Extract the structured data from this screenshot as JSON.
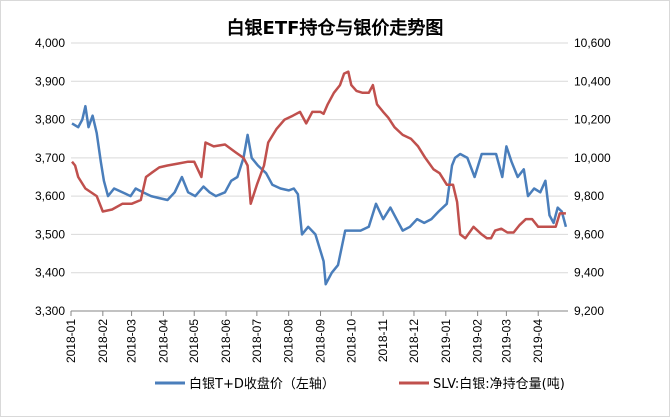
{
  "chart_data": {
    "type": "line",
    "title": "白银ETF持仓与银价走势图",
    "x_tick_labels": [
      "2018-01",
      "2018-02",
      "2018-03",
      "2018-04",
      "2018-05",
      "2018-06",
      "2018-07",
      "2018-08",
      "2018-09",
      "2018-10",
      "2018-11",
      "2018-12",
      "2019-01",
      "2019-02",
      "2019-03",
      "2019-04"
    ],
    "xlim": [
      "2018-01-01",
      "2019-04-30"
    ],
    "y_left": {
      "ylim": [
        3300,
        4000
      ],
      "ticks": [
        "3,300",
        "3,400",
        "3,500",
        "3,600",
        "3,700",
        "3,800",
        "3,900",
        "4,000"
      ]
    },
    "y_right": {
      "ylim": [
        9200,
        10600
      ],
      "ticks": [
        "9,200",
        "9,400",
        "9,600",
        "9,800",
        "10,000",
        "10,200",
        "10,400",
        "10,600"
      ]
    },
    "grid": "horizontal",
    "legend_position": "bottom",
    "series": [
      {
        "name": "白银T+D收盘价（左轴）",
        "axis": "left",
        "color": "#4a7ebb",
        "points": [
          [
            "2018-01-02",
            3790
          ],
          [
            "2018-01-08",
            3780
          ],
          [
            "2018-01-12",
            3800
          ],
          [
            "2018-01-15",
            3835
          ],
          [
            "2018-01-18",
            3780
          ],
          [
            "2018-01-22",
            3810
          ],
          [
            "2018-01-26",
            3765
          ],
          [
            "2018-01-30",
            3690
          ],
          [
            "2018-02-02",
            3640
          ],
          [
            "2018-02-06",
            3600
          ],
          [
            "2018-02-12",
            3620
          ],
          [
            "2018-02-20",
            3610
          ],
          [
            "2018-02-28",
            3600
          ],
          [
            "2018-03-05",
            3620
          ],
          [
            "2018-03-12",
            3610
          ],
          [
            "2018-03-20",
            3600
          ],
          [
            "2018-03-28",
            3595
          ],
          [
            "2018-04-05",
            3590
          ],
          [
            "2018-04-12",
            3610
          ],
          [
            "2018-04-19",
            3650
          ],
          [
            "2018-04-25",
            3610
          ],
          [
            "2018-05-02",
            3600
          ],
          [
            "2018-05-10",
            3625
          ],
          [
            "2018-05-16",
            3610
          ],
          [
            "2018-05-22",
            3600
          ],
          [
            "2018-05-31",
            3610
          ],
          [
            "2018-06-06",
            3640
          ],
          [
            "2018-06-12",
            3650
          ],
          [
            "2018-06-18",
            3700
          ],
          [
            "2018-06-22",
            3760
          ],
          [
            "2018-06-26",
            3700
          ],
          [
            "2018-07-02",
            3680
          ],
          [
            "2018-07-10",
            3660
          ],
          [
            "2018-07-16",
            3630
          ],
          [
            "2018-07-24",
            3620
          ],
          [
            "2018-08-01",
            3615
          ],
          [
            "2018-08-06",
            3620
          ],
          [
            "2018-08-10",
            3605
          ],
          [
            "2018-08-14",
            3500
          ],
          [
            "2018-08-20",
            3520
          ],
          [
            "2018-08-27",
            3500
          ],
          [
            "2018-09-04",
            3430
          ],
          [
            "2018-09-06",
            3370
          ],
          [
            "2018-09-12",
            3400
          ],
          [
            "2018-09-18",
            3420
          ],
          [
            "2018-09-25",
            3510
          ],
          [
            "2018-10-02",
            3510
          ],
          [
            "2018-10-10",
            3510
          ],
          [
            "2018-10-18",
            3520
          ],
          [
            "2018-10-25",
            3580
          ],
          [
            "2018-11-01",
            3540
          ],
          [
            "2018-11-08",
            3570
          ],
          [
            "2018-11-14",
            3540
          ],
          [
            "2018-11-20",
            3510
          ],
          [
            "2018-11-27",
            3520
          ],
          [
            "2018-12-04",
            3540
          ],
          [
            "2018-12-11",
            3530
          ],
          [
            "2018-12-18",
            3540
          ],
          [
            "2018-12-25",
            3560
          ],
          [
            "2019-01-02",
            3580
          ],
          [
            "2019-01-07",
            3680
          ],
          [
            "2019-01-10",
            3700
          ],
          [
            "2019-01-15",
            3710
          ],
          [
            "2019-01-22",
            3700
          ],
          [
            "2019-01-29",
            3650
          ],
          [
            "2019-02-05",
            3710
          ],
          [
            "2019-02-12",
            3710
          ],
          [
            "2019-02-19",
            3710
          ],
          [
            "2019-02-25",
            3650
          ],
          [
            "2019-03-01",
            3730
          ],
          [
            "2019-03-06",
            3690
          ],
          [
            "2019-03-12",
            3650
          ],
          [
            "2019-03-18",
            3670
          ],
          [
            "2019-03-22",
            3600
          ],
          [
            "2019-03-28",
            3620
          ],
          [
            "2019-04-03",
            3610
          ],
          [
            "2019-04-08",
            3640
          ],
          [
            "2019-04-12",
            3550
          ],
          [
            "2019-04-16",
            3530
          ],
          [
            "2019-04-20",
            3570
          ],
          [
            "2019-04-24",
            3560
          ],
          [
            "2019-04-28",
            3520
          ]
        ]
      },
      {
        "name": "SLV:白银:净持仓量(吨)",
        "axis": "right",
        "color": "#c0504d",
        "points": [
          [
            "2018-01-02",
            9980
          ],
          [
            "2018-01-05",
            9960
          ],
          [
            "2018-01-08",
            9900
          ],
          [
            "2018-01-15",
            9840
          ],
          [
            "2018-01-26",
            9800
          ],
          [
            "2018-02-01",
            9720
          ],
          [
            "2018-02-10",
            9730
          ],
          [
            "2018-02-20",
            9760
          ],
          [
            "2018-03-01",
            9760
          ],
          [
            "2018-03-10",
            9780
          ],
          [
            "2018-03-15",
            9900
          ],
          [
            "2018-03-20",
            9920
          ],
          [
            "2018-03-28",
            9950
          ],
          [
            "2018-04-05",
            9960
          ],
          [
            "2018-04-15",
            9970
          ],
          [
            "2018-04-25",
            9980
          ],
          [
            "2018-05-01",
            9980
          ],
          [
            "2018-05-08",
            9900
          ],
          [
            "2018-05-12",
            10080
          ],
          [
            "2018-05-20",
            10060
          ],
          [
            "2018-05-31",
            10070
          ],
          [
            "2018-06-10",
            10030
          ],
          [
            "2018-06-18",
            10000
          ],
          [
            "2018-06-22",
            9960
          ],
          [
            "2018-06-25",
            9760
          ],
          [
            "2018-07-01",
            9860
          ],
          [
            "2018-07-08",
            9960
          ],
          [
            "2018-07-12",
            10080
          ],
          [
            "2018-07-20",
            10150
          ],
          [
            "2018-07-28",
            10200
          ],
          [
            "2018-08-05",
            10220
          ],
          [
            "2018-08-12",
            10240
          ],
          [
            "2018-08-18",
            10180
          ],
          [
            "2018-08-24",
            10240
          ],
          [
            "2018-09-01",
            10240
          ],
          [
            "2018-09-04",
            10230
          ],
          [
            "2018-09-08",
            10280
          ],
          [
            "2018-09-14",
            10340
          ],
          [
            "2018-09-20",
            10380
          ],
          [
            "2018-09-24",
            10440
          ],
          [
            "2018-09-28",
            10450
          ],
          [
            "2018-10-01",
            10380
          ],
          [
            "2018-10-06",
            10350
          ],
          [
            "2018-10-12",
            10340
          ],
          [
            "2018-10-18",
            10340
          ],
          [
            "2018-10-22",
            10380
          ],
          [
            "2018-10-26",
            10280
          ],
          [
            "2018-11-01",
            10240
          ],
          [
            "2018-11-06",
            10210
          ],
          [
            "2018-11-12",
            10160
          ],
          [
            "2018-11-20",
            10120
          ],
          [
            "2018-11-28",
            10100
          ],
          [
            "2018-12-05",
            10060
          ],
          [
            "2018-12-12",
            10000
          ],
          [
            "2018-12-20",
            9940
          ],
          [
            "2018-12-26",
            9920
          ],
          [
            "2019-01-02",
            9860
          ],
          [
            "2019-01-08",
            9860
          ],
          [
            "2019-01-12",
            9770
          ],
          [
            "2019-01-15",
            9600
          ],
          [
            "2019-01-20",
            9580
          ],
          [
            "2019-01-28",
            9640
          ],
          [
            "2019-02-05",
            9600
          ],
          [
            "2019-02-10",
            9580
          ],
          [
            "2019-02-14",
            9580
          ],
          [
            "2019-02-18",
            9620
          ],
          [
            "2019-02-24",
            9630
          ],
          [
            "2019-03-02",
            9610
          ],
          [
            "2019-03-08",
            9610
          ],
          [
            "2019-03-14",
            9650
          ],
          [
            "2019-03-20",
            9680
          ],
          [
            "2019-03-26",
            9680
          ],
          [
            "2019-04-01",
            9640
          ],
          [
            "2019-04-06",
            9640
          ],
          [
            "2019-04-12",
            9640
          ],
          [
            "2019-04-18",
            9640
          ],
          [
            "2019-04-22",
            9710
          ],
          [
            "2019-04-28",
            9710
          ]
        ]
      }
    ]
  }
}
